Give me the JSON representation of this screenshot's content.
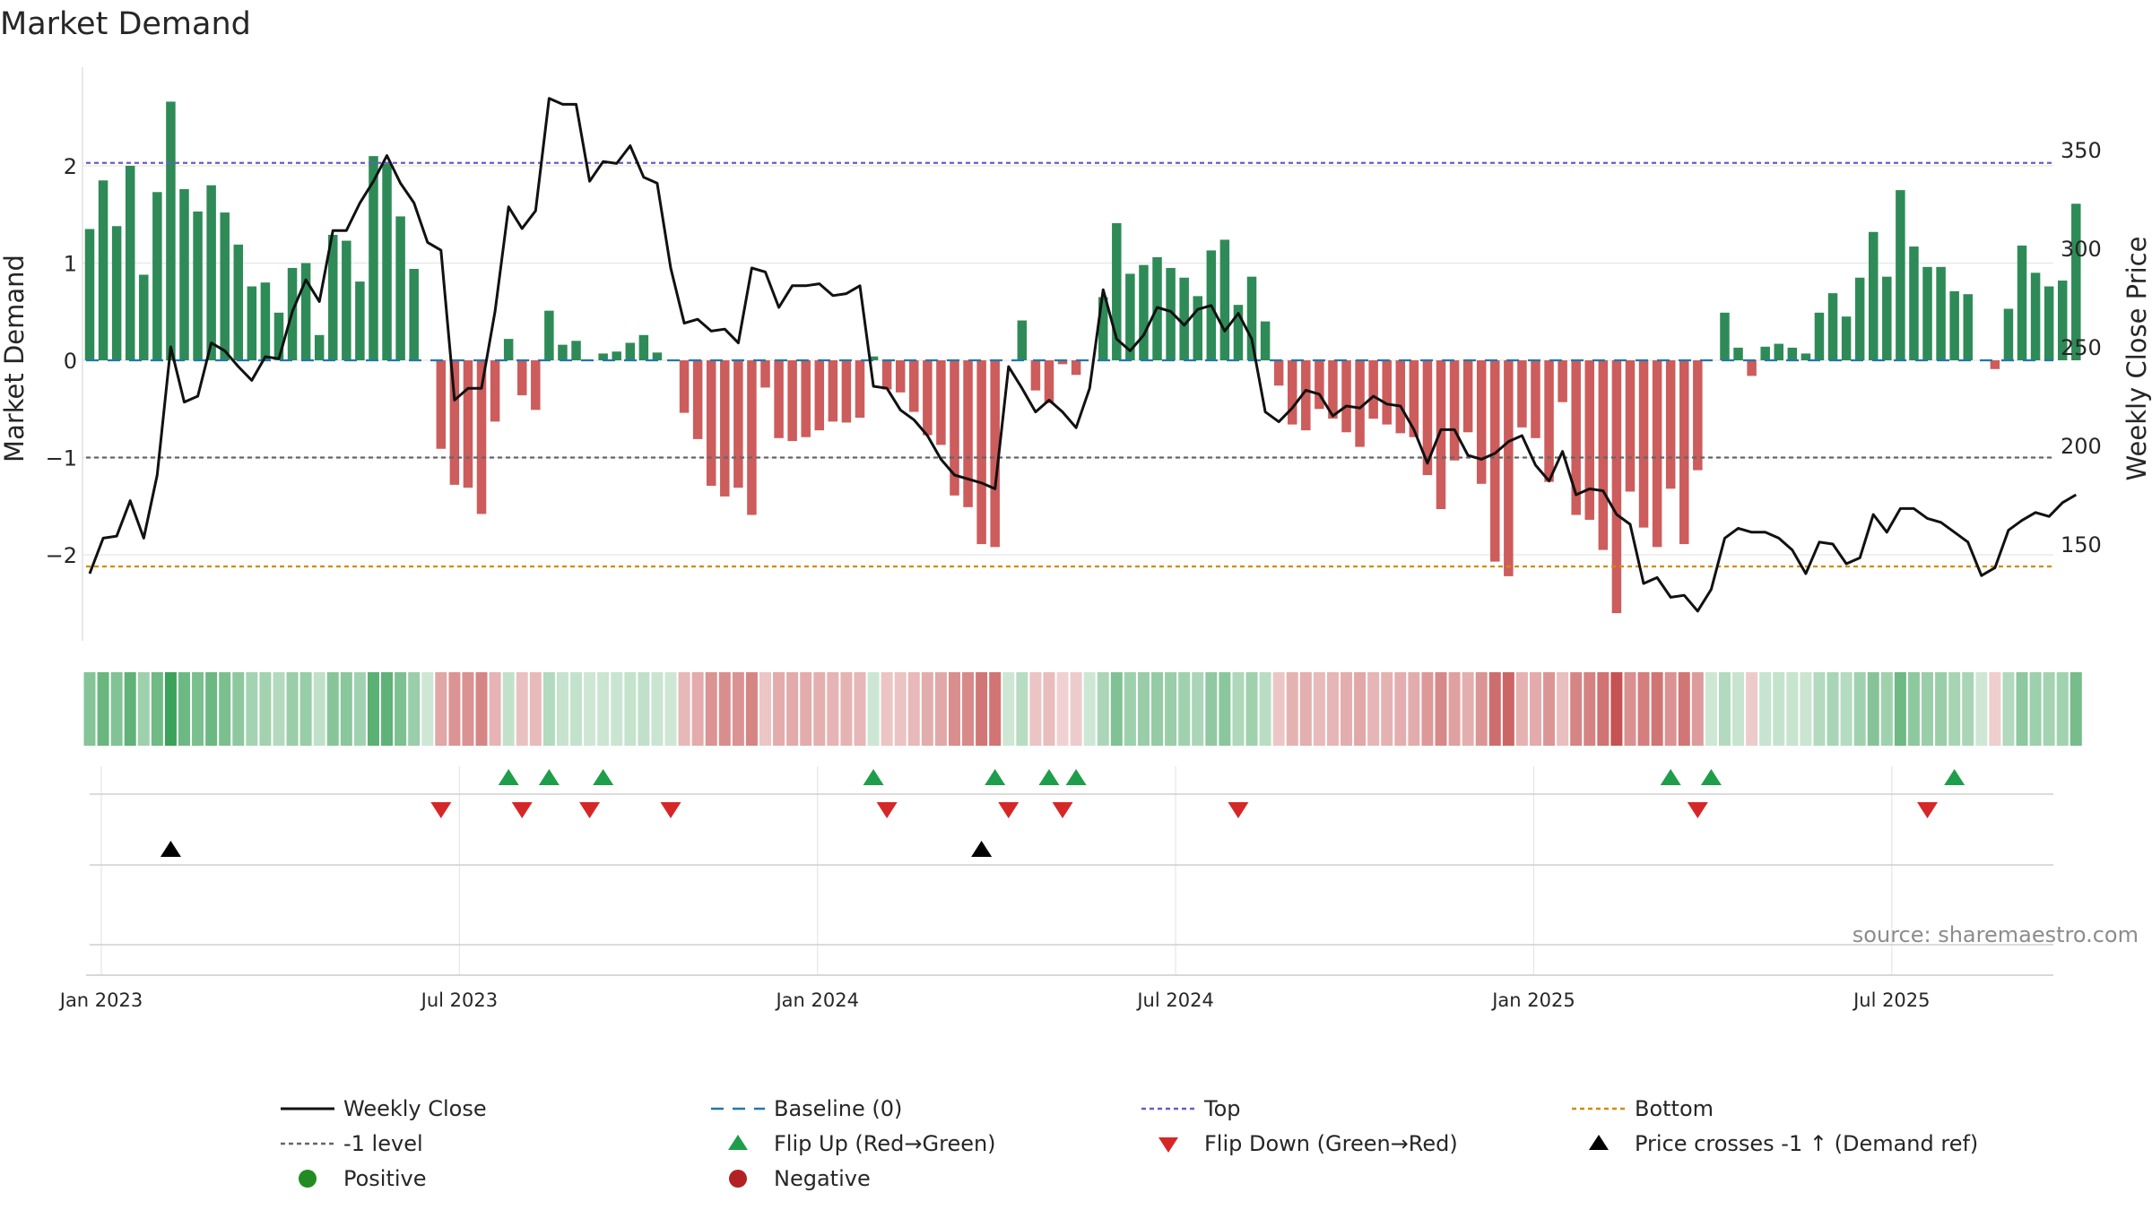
{
  "title": "Market Demand",
  "source_note": "source: sharemaestro.com",
  "colors": {
    "positive_bar": "#2e8b57",
    "negative_bar": "#cd5c5c",
    "price_line": "#111111",
    "baseline": "#1f77b4",
    "top_line": "#6a5acd",
    "bottom_line": "#d48a00",
    "minus1_line": "#666666",
    "flip_up": "#1e9e4a",
    "flip_down": "#d62728",
    "cross_marker": "#000000",
    "grid": "#e6e6e6"
  },
  "chart_data": {
    "type": "bar",
    "title": "Market Demand",
    "ylabel_left": "Market Demand",
    "ylabel_right": "Weekly Close Price",
    "y_left_ticks": [
      "2",
      "1",
      "0",
      "−1",
      "−2"
    ],
    "y_right_ticks": [
      "350",
      "300",
      "250",
      "200",
      "150"
    ],
    "y_left_range": [
      -3,
      2.9
    ],
    "y_right_range": [
      102,
      385
    ],
    "x_ticks": [
      "Jan 2023",
      "Jul 2023",
      "Jan 2024",
      "Jul 2024",
      "Jan 2025",
      "Jul 2025"
    ],
    "grid": true,
    "reference_lines": {
      "baseline": 0,
      "minus1": -1,
      "top": 2.03,
      "bottom": -2.12
    },
    "series": [
      {
        "name": "Market Demand",
        "kind": "bar",
        "values": [
          1.35,
          1.85,
          1.38,
          2.0,
          0.88,
          1.73,
          2.66,
          1.76,
          1.53,
          1.8,
          1.52,
          1.19,
          0.76,
          0.8,
          0.49,
          0.95,
          1.0,
          0.26,
          1.29,
          1.23,
          0.81,
          2.1,
          2.02,
          1.48,
          0.94,
          0,
          -0.91,
          -1.28,
          -1.31,
          -1.58,
          -0.63,
          0.22,
          -0.36,
          -0.51,
          0.51,
          0.16,
          0.2,
          0,
          0.07,
          0.09,
          0.18,
          0.26,
          0.08,
          0,
          -0.54,
          -0.81,
          -1.29,
          -1.4,
          -1.31,
          -1.59,
          -0.28,
          -0.8,
          -0.83,
          -0.79,
          -0.72,
          -0.63,
          -0.64,
          -0.59,
          0.04,
          -0.3,
          -0.33,
          -0.53,
          -0.77,
          -0.87,
          -1.39,
          -1.51,
          -1.89,
          -1.92,
          0,
          0.41,
          -0.31,
          -0.44,
          -0.04,
          -0.15,
          0,
          0.65,
          1.41,
          0.89,
          0.98,
          1.06,
          0.95,
          0.85,
          0.66,
          1.13,
          1.24,
          0.57,
          0.86,
          0.4,
          -0.26,
          -0.66,
          -0.72,
          -0.5,
          -0.6,
          -0.74,
          -0.89,
          -0.6,
          -0.66,
          -0.75,
          -0.79,
          -1.18,
          -1.53,
          -1.03,
          -0.74,
          -1.27,
          -2.07,
          -2.22,
          -0.69,
          -0.8,
          -1.25,
          -0.43,
          -1.59,
          -1.64,
          -1.95,
          -2.6,
          -1.35,
          -1.72,
          -1.92,
          -1.32,
          -1.89,
          -1.13,
          0,
          0.49,
          0.13,
          -0.16,
          0.14,
          0.17,
          0.13,
          0.07,
          0.49,
          0.69,
          0.45,
          0.85,
          1.32,
          0.86,
          1.75,
          1.17,
          0.96,
          0.96,
          0.71,
          0.68,
          0,
          -0.09,
          0.53,
          1.18,
          0.9,
          0.76,
          0.82,
          1.61
        ]
      },
      {
        "name": "Weekly Close",
        "kind": "line",
        "values": [
          135,
          153,
          154,
          172,
          153,
          185,
          250,
          222,
          225,
          252,
          248,
          240,
          233,
          245,
          244,
          268,
          284,
          273,
          309,
          309,
          323,
          334,
          347,
          333,
          323,
          303,
          299,
          223,
          229,
          229,
          268,
          321,
          310,
          319,
          376,
          373,
          373,
          334,
          344,
          343,
          352,
          336,
          333,
          290,
          262,
          264,
          258,
          259,
          252,
          290,
          288,
          270,
          281,
          281,
          282,
          276,
          277,
          281,
          230,
          229,
          218,
          213,
          205,
          193,
          185,
          183,
          181,
          178,
          240,
          229,
          217,
          223,
          217,
          209,
          229,
          279,
          254,
          248,
          256,
          270,
          268,
          261,
          269,
          271,
          258,
          267,
          254,
          217,
          212,
          219,
          228,
          226,
          215,
          220,
          219,
          225,
          221,
          220,
          208,
          191,
          208,
          208,
          195,
          193,
          196,
          202,
          205,
          190,
          182,
          197,
          175,
          178,
          177,
          165,
          160,
          130,
          133,
          123,
          124,
          116,
          127,
          153,
          158,
          156,
          156,
          153,
          147,
          135,
          151,
          150,
          140,
          143,
          165,
          156,
          168,
          168,
          163,
          161,
          156,
          151,
          134,
          138,
          157,
          162,
          166,
          164,
          171,
          175
        ]
      }
    ],
    "flip_up_weeks": [
      31,
      34,
      38,
      58,
      67,
      71,
      73,
      117,
      120,
      138
    ],
    "flip_down_weeks": [
      26,
      32,
      37,
      43,
      59,
      68,
      72,
      85,
      119,
      136
    ],
    "price_cross_weeks": [
      6,
      66
    ]
  },
  "legend": [
    {
      "label": "Weekly Close",
      "symbol": "line",
      "color": "#111111"
    },
    {
      "label": "Baseline (0)",
      "symbol": "dashed",
      "color": "#1f77b4"
    },
    {
      "label": "Top",
      "symbol": "dotted",
      "color": "#6a5acd"
    },
    {
      "label": "Bottom",
      "symbol": "dotted",
      "color": "#d48a00"
    },
    {
      "label": "-1 level",
      "symbol": "dotted",
      "color": "#666666"
    },
    {
      "label": "Flip Up (Red→Green)",
      "symbol": "triangle-up",
      "color": "#1e9e4a"
    },
    {
      "label": "Flip Down (Green→Red)",
      "symbol": "triangle-down",
      "color": "#d62728"
    },
    {
      "label": "Price crosses -1 ↑ (Demand ref)",
      "symbol": "triangle-up",
      "color": "#000000"
    },
    {
      "label": "Positive",
      "symbol": "dot",
      "color": "#228b22"
    },
    {
      "label": "Negative",
      "symbol": "dot",
      "color": "#b22222"
    }
  ]
}
